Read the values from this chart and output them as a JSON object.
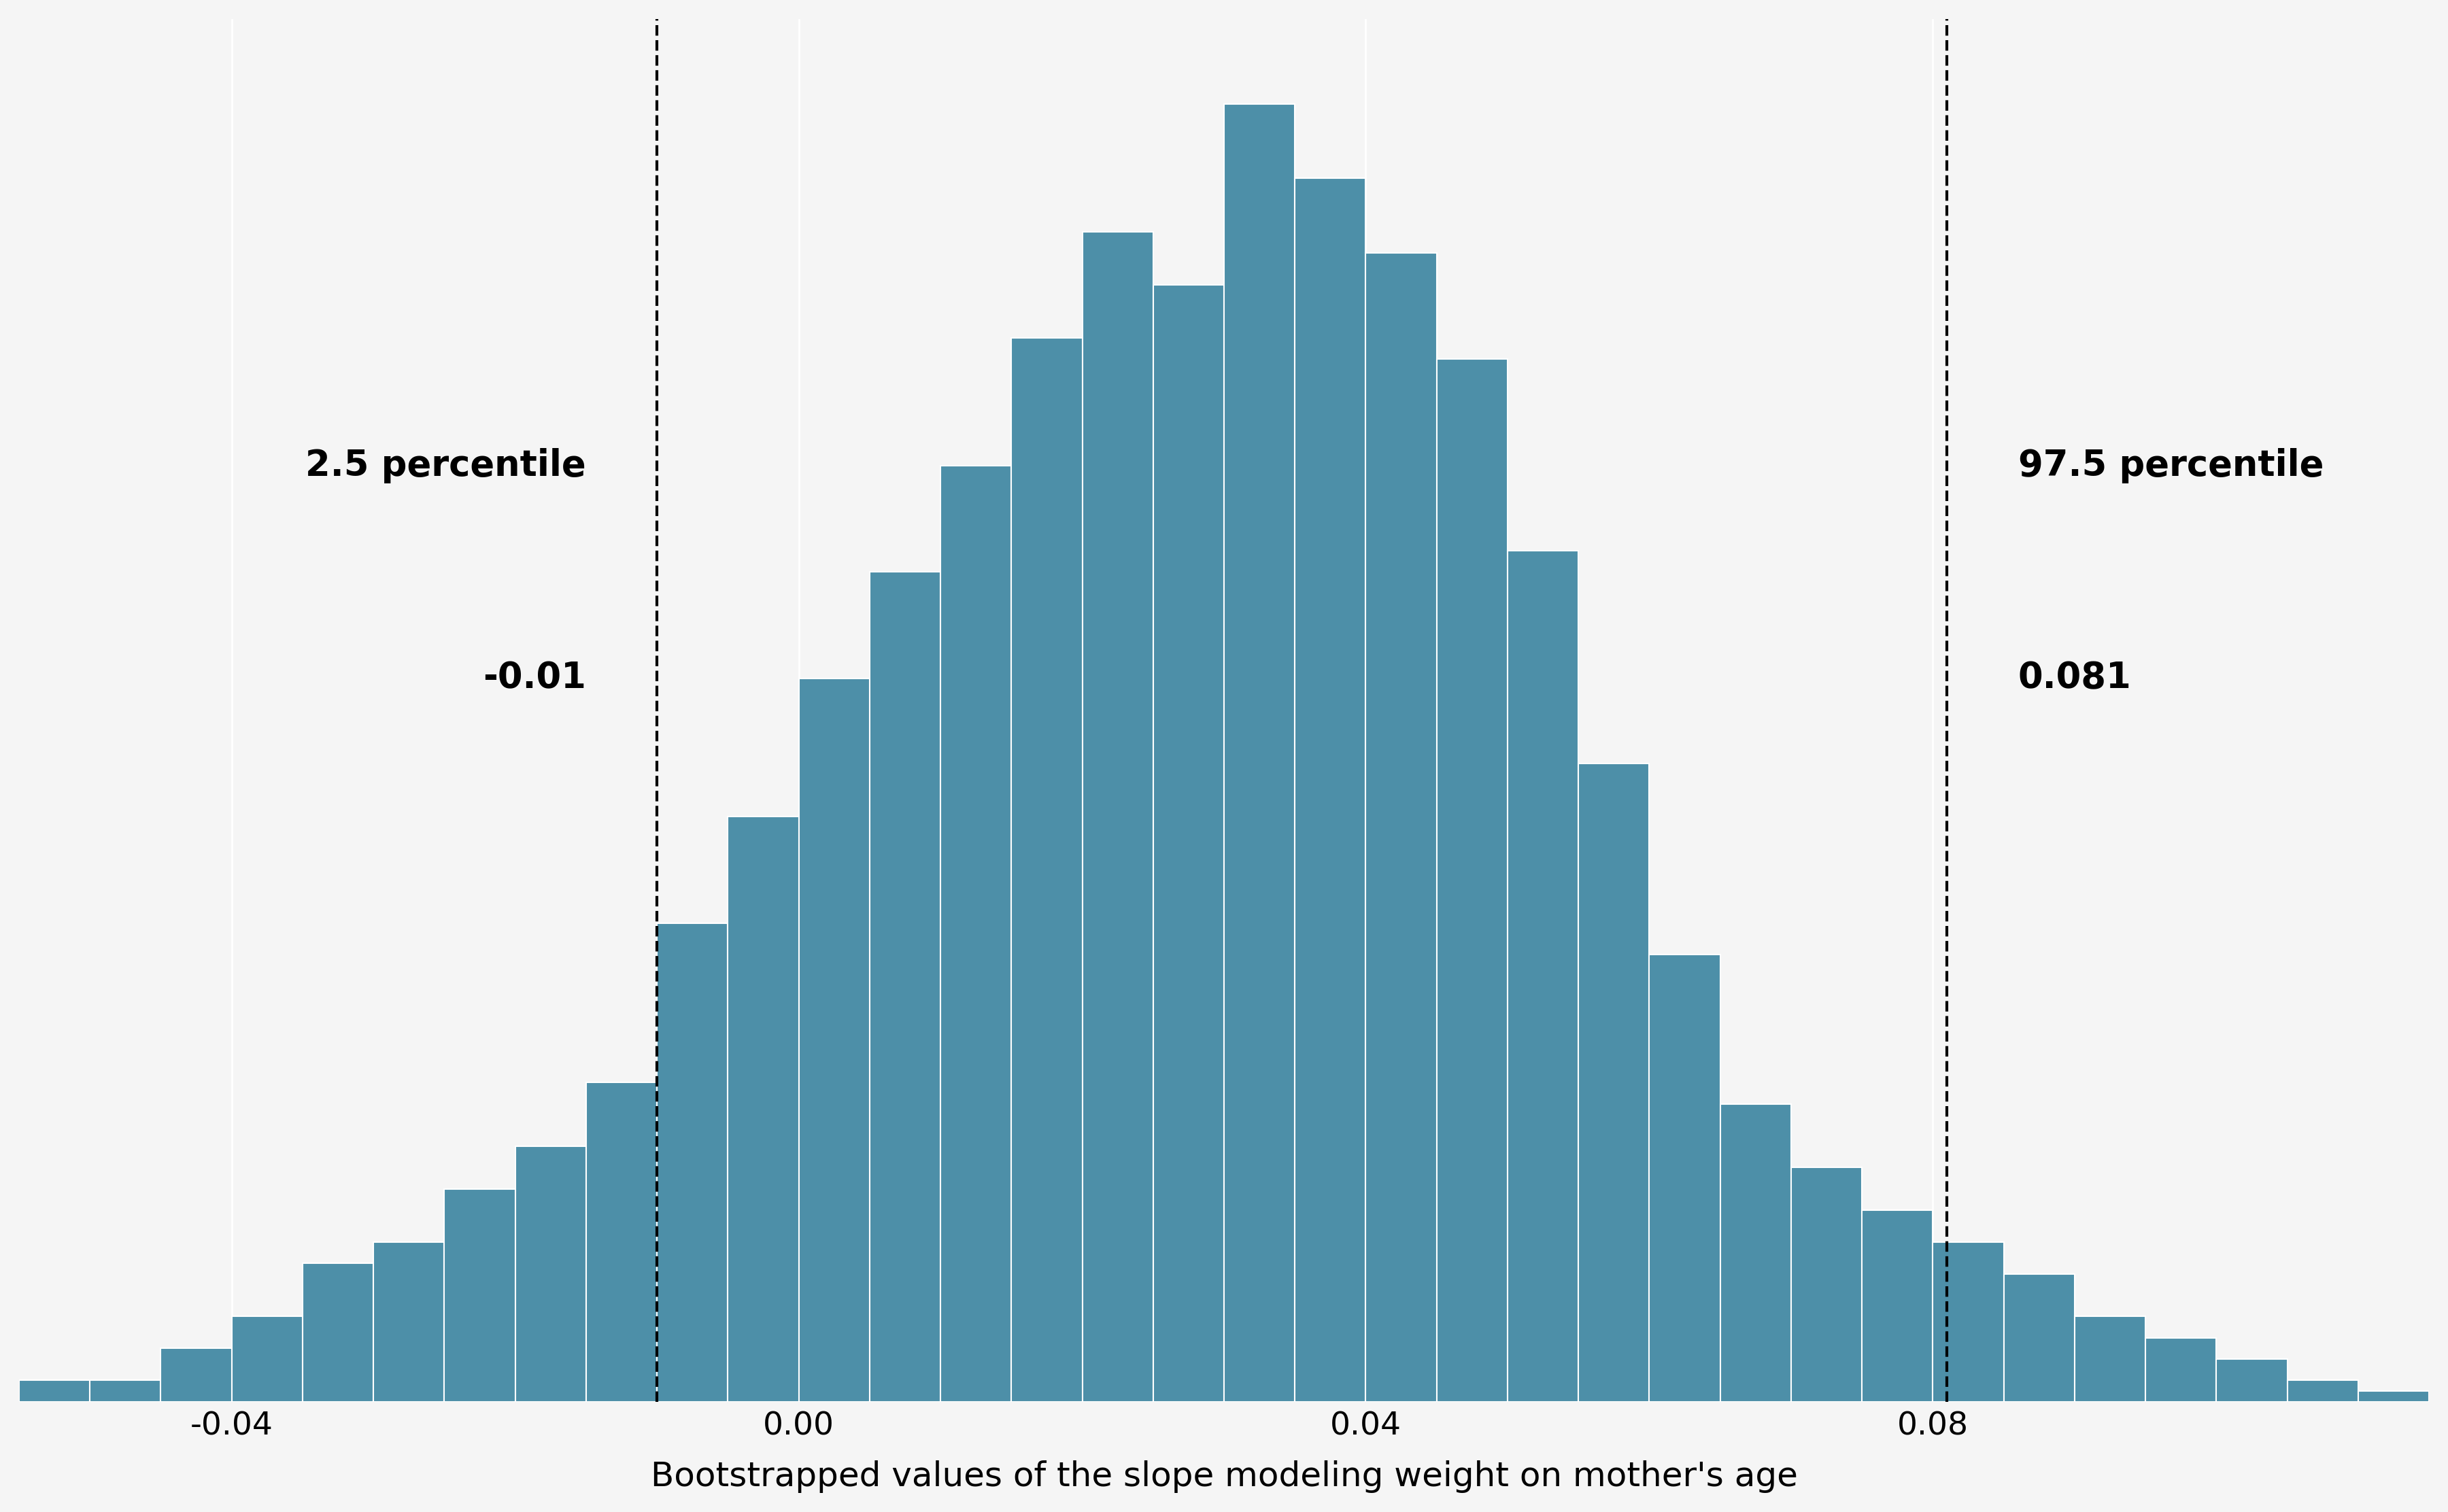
{
  "title": "",
  "xlabel": "Bootstrapped values of the slope modeling weight on mother's age",
  "ylabel": "",
  "bar_color": "#4d8fa8",
  "background_color": "#f5f5f5",
  "grid_color": "#ffffff",
  "xlim": [
    -0.055,
    0.115
  ],
  "ylim": [
    0,
    130
  ],
  "xticks": [
    -0.04,
    0.0,
    0.04,
    0.08
  ],
  "percentile_low": -0.01,
  "percentile_high": 0.081,
  "percentile_low_label": "-0.01",
  "percentile_high_label": "0.081",
  "percentile_low_text": "2.5 percentile",
  "percentile_high_text": "97.5 percentile",
  "bin_edges": [
    -0.055,
    -0.05,
    -0.045,
    -0.04,
    -0.035,
    -0.03,
    -0.025,
    -0.02,
    -0.015,
    -0.01,
    -0.005,
    0.0,
    0.005,
    0.01,
    0.015,
    0.02,
    0.025,
    0.03,
    0.035,
    0.04,
    0.045,
    0.05,
    0.055,
    0.06,
    0.065,
    0.07,
    0.075,
    0.08,
    0.085,
    0.09,
    0.095,
    0.1,
    0.105,
    0.11,
    0.115
  ],
  "bin_counts": [
    2,
    2,
    5,
    8,
    13,
    15,
    20,
    24,
    30,
    45,
    55,
    68,
    78,
    88,
    100,
    110,
    105,
    122,
    115,
    108,
    98,
    80,
    60,
    42,
    28,
    22,
    18,
    15,
    12,
    8,
    6,
    4,
    2,
    1
  ],
  "xlabel_fontsize": 36,
  "tick_fontsize": 34,
  "annotation_fontsize": 38,
  "annotation_value_fontsize": 38
}
